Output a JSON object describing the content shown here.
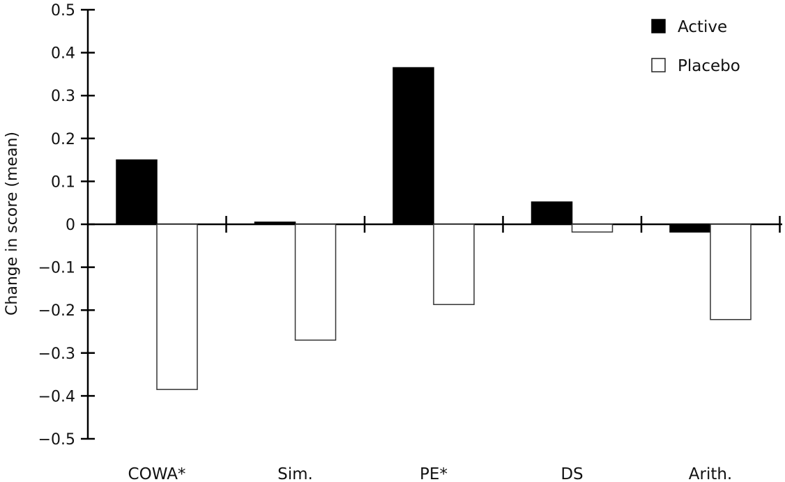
{
  "chart_data": {
    "type": "bar",
    "title": "",
    "xlabel": "",
    "ylabel": "Change in score (mean)",
    "ylim": [
      -0.5,
      0.5
    ],
    "yticks": [
      0.5,
      0.4,
      0.3,
      0.2,
      0.1,
      0,
      -0.1,
      -0.2,
      -0.3,
      -0.4,
      -0.5
    ],
    "ytick_labels": [
      "0.5",
      "0.4",
      "0.3",
      "0.2",
      "0.1",
      "0",
      "−0.1",
      "−0.2",
      "−0.3",
      "−0.4",
      "−0.5"
    ],
    "categories": [
      "COWA*",
      "Sim.",
      "PE*",
      "DS",
      "Arith."
    ],
    "series": [
      {
        "name": "Active",
        "values": [
          0.15,
          0.005,
          0.365,
          0.052,
          -0.018
        ],
        "fill": "#000000"
      },
      {
        "name": "Placebo",
        "values": [
          -0.385,
          -0.27,
          -0.187,
          -0.018,
          -0.222
        ],
        "fill": "#ffffff"
      }
    ],
    "legend_position": "top-right",
    "grid": false
  }
}
